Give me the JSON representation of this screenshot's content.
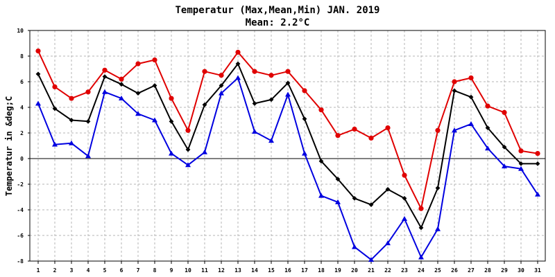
{
  "chart_data": {
    "type": "line",
    "title": "Temperatur (Max,Mean,Min) JAN. 2019",
    "subtitle": "Mean: 2.2°C",
    "xlabel": "",
    "ylabel": "Temperatur in &deg;C",
    "ylim": [
      -8,
      10
    ],
    "y_ticks": [
      -8,
      -6,
      -4,
      -2,
      0,
      2,
      4,
      6,
      8,
      10
    ],
    "grid": true,
    "legend": "none",
    "categories": [
      "1",
      "2",
      "3",
      "4",
      "5",
      "6",
      "7",
      "8",
      "9",
      "10",
      "11",
      "12",
      "13",
      "14",
      "15",
      "16",
      "17",
      "18",
      "19",
      "20",
      "21",
      "22",
      "23",
      "24",
      "25",
      "26",
      "27",
      "28",
      "29",
      "30",
      "31"
    ],
    "series": [
      {
        "key": "max",
        "color": "#e00000",
        "marker": "circle",
        "values": [
          8.4,
          5.6,
          4.7,
          5.2,
          6.9,
          6.2,
          7.4,
          7.7,
          4.7,
          2.2,
          6.8,
          6.5,
          8.3,
          6.8,
          6.5,
          6.8,
          5.3,
          3.8,
          1.8,
          2.3,
          1.6,
          2.4,
          -1.3,
          -3.9,
          2.2,
          6.0,
          6.3,
          4.1,
          3.6,
          0.6,
          0.4
        ]
      },
      {
        "key": "mean",
        "color": "#000000",
        "marker": "diamond",
        "values": [
          6.6,
          3.9,
          3.0,
          2.9,
          6.4,
          5.8,
          5.1,
          5.7,
          2.9,
          0.7,
          4.2,
          5.7,
          7.4,
          4.3,
          4.6,
          5.9,
          3.1,
          -0.2,
          -1.6,
          -3.1,
          -3.6,
          -2.4,
          -3.1,
          -5.4,
          -2.3,
          5.3,
          4.8,
          2.4,
          0.9,
          -0.4,
          -0.4
        ]
      },
      {
        "key": "min",
        "color": "#0000e0",
        "marker": "triangle",
        "values": [
          4.3,
          1.1,
          1.2,
          0.2,
          5.2,
          4.7,
          3.5,
          3.0,
          0.4,
          -0.5,
          0.5,
          5.1,
          6.3,
          2.1,
          1.4,
          5.0,
          0.4,
          -2.9,
          -3.4,
          -6.9,
          -7.9,
          -6.6,
          -4.7,
          -7.7,
          -5.5,
          2.2,
          2.7,
          0.8,
          -0.6,
          -0.8,
          -2.8
        ]
      }
    ]
  }
}
